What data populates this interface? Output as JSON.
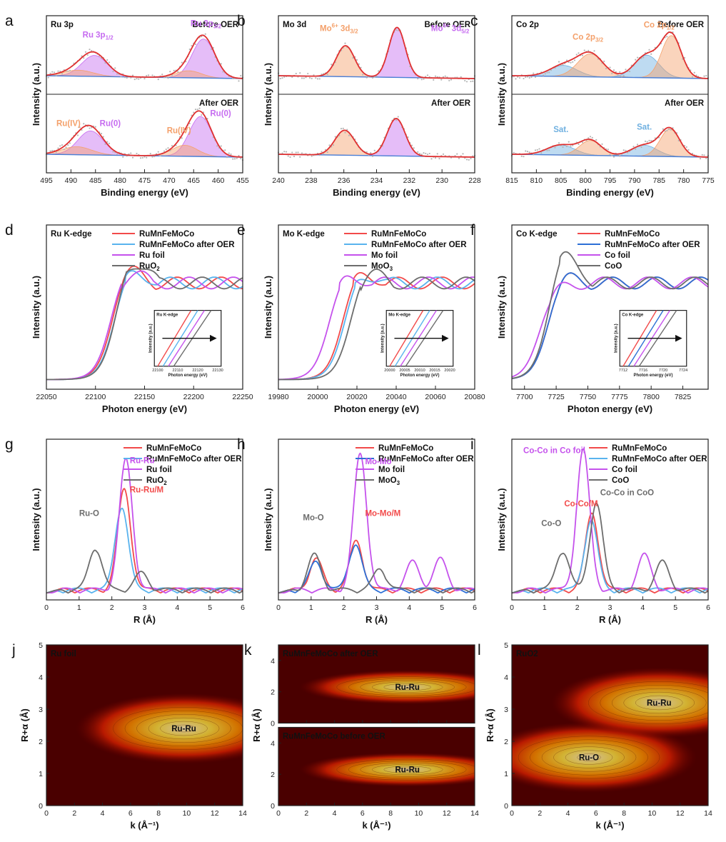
{
  "chart_data": [
    {
      "panel": "a",
      "type": "line",
      "tag": "Ru 3p",
      "xlabel": "Binding energy (eV)",
      "ylabel": "Intensity (a.u.)",
      "xlim": [
        495,
        455
      ],
      "xticks": [
        495,
        490,
        485,
        480,
        475,
        470,
        465,
        460,
        455
      ],
      "subpanels": [
        {
          "label": "Before OER",
          "peaks": [
            {
              "center": 485.2,
              "amp": 0.42,
              "width": 2.6,
              "color": "#c66cf0"
            },
            {
              "center": 463.0,
              "amp": 0.78,
              "width": 2.3,
              "color": "#c66cf0"
            },
            {
              "center": 488.5,
              "amp": 0.12,
              "width": 3.0,
              "color": "#f4a06a"
            },
            {
              "center": 466.0,
              "amp": 0.14,
              "width": 2.6,
              "color": "#f4a06a"
            }
          ],
          "annotations": [
            {
              "text": "Ru 3p",
              "sub": "1/2",
              "x": 484.5,
              "y": 0.82,
              "color": "#c66cf0"
            },
            {
              "text": "Ru 3p",
              "sub": "3/2",
              "x": 462.5,
              "y": 1.05,
              "color": "#c66cf0"
            }
          ]
        },
        {
          "label": "After OER",
          "peaks": [
            {
              "center": 486.0,
              "amp": 0.48,
              "width": 2.6,
              "color": "#c66cf0"
            },
            {
              "center": 463.6,
              "amp": 0.8,
              "width": 2.3,
              "color": "#c66cf0"
            },
            {
              "center": 488.8,
              "amp": 0.16,
              "width": 3.0,
              "color": "#f4a06a"
            },
            {
              "center": 466.8,
              "amp": 0.22,
              "width": 2.6,
              "color": "#f4a06a"
            }
          ],
          "annotations": [
            {
              "text": "Ru(IV)",
              "x": 490.5,
              "y": 0.62,
              "color": "#f4a06a"
            },
            {
              "text": "Ru(0)",
              "x": 482.0,
              "y": 0.62,
              "color": "#c66cf0"
            },
            {
              "text": "Ru(IV)",
              "x": 468.0,
              "y": 0.48,
              "color": "#f4a06a"
            },
            {
              "text": "Ru(0)",
              "x": 459.5,
              "y": 0.82,
              "color": "#c66cf0"
            }
          ]
        }
      ]
    },
    {
      "panel": "b",
      "type": "line",
      "tag": "Mo 3d",
      "xlabel": "Binding energy (eV)",
      "ylabel": "Intensity (a.u.)",
      "xlim": [
        240,
        228
      ],
      "xticks": [
        240,
        238,
        236,
        234,
        232,
        230,
        228
      ],
      "subpanels": [
        {
          "label": "Before OER",
          "peaks": [
            {
              "center": 235.9,
              "amp": 0.62,
              "width": 0.55,
              "color": "#f4a06a"
            },
            {
              "center": 232.75,
              "amp": 1.0,
              "width": 0.5,
              "color": "#c66cf0"
            }
          ],
          "annotations": [
            {
              "text": "Mo",
              "sup": "6+",
              "tail": " 3d",
              "sub": "3/2",
              "x": 236.3,
              "y": 0.95,
              "color": "#f4a06a"
            },
            {
              "text": "Mo",
              "sup": "6+",
              "tail": " 3d",
              "sub": "5/2",
              "x": 229.5,
              "y": 0.95,
              "color": "#c66cf0"
            }
          ]
        },
        {
          "label": "After OER",
          "peaks": [
            {
              "center": 235.95,
              "amp": 0.5,
              "width": 0.6,
              "color": "#f4a06a"
            },
            {
              "center": 232.8,
              "amp": 0.75,
              "width": 0.55,
              "color": "#c66cf0"
            }
          ],
          "annotations": []
        }
      ]
    },
    {
      "panel": "c",
      "type": "line",
      "tag": "Co 2p",
      "xlabel": "Binding energy (eV)",
      "ylabel": "Intensity (a.u.)",
      "xlim": [
        815,
        775
      ],
      "xticks": [
        815,
        810,
        805,
        800,
        795,
        790,
        785,
        780,
        775
      ],
      "subpanels": [
        {
          "label": "Before OER",
          "peaks": [
            {
              "center": 804.5,
              "amp": 0.22,
              "width": 2.8,
              "color": "#6fb0e0"
            },
            {
              "center": 799.0,
              "amp": 0.46,
              "width": 2.6,
              "color": "#f4a06a"
            },
            {
              "center": 787.5,
              "amp": 0.45,
              "width": 2.5,
              "color": "#6fb0e0"
            },
            {
              "center": 782.5,
              "amp": 0.85,
              "width": 2.0,
              "color": "#f4a06a"
            }
          ],
          "annotations": [
            {
              "text": "Co 2p",
              "sub": "3/2",
              "x": 799.5,
              "y": 0.78,
              "color": "#f4a06a"
            },
            {
              "text": "Co 2p",
              "sub": "1/2",
              "x": 785.0,
              "y": 1.02,
              "color": "#f4a06a"
            }
          ]
        },
        {
          "label": "After OER",
          "peaks": [
            {
              "center": 805.0,
              "amp": 0.2,
              "width": 2.8,
              "color": "#6fb0e0"
            },
            {
              "center": 799.0,
              "amp": 0.3,
              "width": 2.2,
              "color": "#f4a06a"
            },
            {
              "center": 788.0,
              "amp": 0.22,
              "width": 2.6,
              "color": "#6fb0e0"
            },
            {
              "center": 782.8,
              "amp": 0.55,
              "width": 2.0,
              "color": "#f4a06a"
            }
          ],
          "annotations": [
            {
              "text": "Sat.",
              "x": 805.0,
              "y": 0.5,
              "color": "#6fb0e0"
            },
            {
              "text": "Sat.",
              "x": 788.0,
              "y": 0.55,
              "color": "#6fb0e0"
            }
          ]
        }
      ]
    },
    {
      "panel": "d",
      "type": "line",
      "tag": "Ru K-edge",
      "xlabel": "Photon energy (eV)",
      "ylabel": "Intensity (a.u.)",
      "xlim": [
        22050,
        22250
      ],
      "ylim": [
        -0.1,
        1.6
      ],
      "xticks": [
        22050,
        22100,
        22150,
        22200,
        22250
      ],
      "series": [
        {
          "name": "RuMnFeMoCo",
          "color": "#f24a4a",
          "edge": 22118,
          "peak": 1.3
        },
        {
          "name": "RuMnFeMoCo after OER",
          "color": "#59b3ee",
          "edge": 22120,
          "peak": 1.28
        },
        {
          "name": "Ru foil",
          "color": "#c552ec",
          "edge": 22116,
          "peak": 1.26
        },
        {
          "name": "RuO",
          "sub": "2",
          "color": "#6d6d6d",
          "edge": 22122,
          "peak": 1.45
        }
      ],
      "inset": {
        "tag": "Ru K-edge",
        "xlabel": "Photon energy (eV)",
        "ylabel": "Intensity (a.u.)",
        "xticks": [
          22100,
          22110,
          22120,
          22130
        ]
      }
    },
    {
      "panel": "e",
      "type": "line",
      "tag": "Mo K-edge",
      "xlabel": "Photon energy (eV)",
      "ylabel": "Intensity (a.u.)",
      "xlim": [
        19980,
        20080
      ],
      "ylim": [
        -0.1,
        1.6
      ],
      "xticks": [
        19980,
        20000,
        20020,
        20040,
        20060,
        20080
      ],
      "series": [
        {
          "name": "RuMnFeMoCo",
          "color": "#f24a4a",
          "edge": 20013,
          "peak": 1.25
        },
        {
          "name": "RuMnFeMoCo after OER",
          "color": "#59b3ee",
          "edge": 20014,
          "peak": 1.23
        },
        {
          "name": "Mo foil",
          "color": "#c552ec",
          "edge": 20006,
          "peak": 1.2
        },
        {
          "name": "MoO",
          "sub": "3",
          "color": "#6d6d6d",
          "edge": 20017,
          "peak": 1.25
        }
      ],
      "inset": {
        "tag": "Mo K-edge",
        "xlabel": "Photon energy (eV)",
        "ylabel": "Intensity (a.u.)",
        "xticks": [
          20000,
          20005,
          20010,
          20015,
          20020
        ]
      }
    },
    {
      "panel": "f",
      "type": "line",
      "tag": "Co K-edge",
      "xlabel": "Photon energy (eV)",
      "ylabel": "Intensity (a.u.)",
      "xlim": [
        7690,
        7845
      ],
      "ylim": [
        -0.1,
        1.6
      ],
      "xticks": [
        7700,
        7725,
        7750,
        7775,
        7800,
        7825
      ],
      "series": [
        {
          "name": "RuMnFeMoCo",
          "color": "#f24a4a",
          "edge": 7719,
          "peak": 1.18
        },
        {
          "name": "RuMnFeMoCo after OER",
          "color": "#2c6fd6",
          "edge": 7719,
          "peak": 1.18
        },
        {
          "name": "Co foil",
          "color": "#c552ec",
          "edge": 7712,
          "peak": 1.0
        },
        {
          "name": "CoO",
          "color": "#6d6d6d",
          "edge": 7720,
          "peak": 1.55
        }
      ],
      "inset": {
        "tag": "Co K-edge",
        "xlabel": "Photon energy (eV)",
        "ylabel": "Intensity (a.u.)",
        "xticks": [
          7712,
          7716,
          7720,
          7724
        ]
      }
    },
    {
      "panel": "g",
      "type": "line",
      "xlabel": "R (Å)",
      "ylabel": "Intensity (a.u.)",
      "xlim": [
        0,
        6
      ],
      "ylim": [
        -0.05,
        1.1
      ],
      "xticks": [
        0,
        1,
        2,
        3,
        4,
        5,
        6
      ],
      "series": [
        {
          "name": "RuMnFeMoCo",
          "color": "#f24a4a",
          "peaks": [
            [
              2.38,
              0.72
            ]
          ]
        },
        {
          "name": "RuMnFeMoCo after OER",
          "color": "#59b3ee",
          "peaks": [
            [
              2.3,
              0.6
            ]
          ]
        },
        {
          "name": "Ru foil",
          "color": "#c552ec",
          "peaks": [
            [
              2.43,
              0.93
            ]
          ]
        },
        {
          "name": "RuO",
          "sub": "2",
          "color": "#6d6d6d",
          "peaks": [
            [
              1.5,
              0.3
            ],
            [
              2.9,
              0.12
            ]
          ]
        }
      ],
      "annotations": [
        {
          "text": "Ru-Ru",
          "x": 2.55,
          "y": 0.93,
          "color": "#c552ec"
        },
        {
          "text": "Ru-Ru/M",
          "x": 2.55,
          "y": 0.72,
          "color": "#f24a4a"
        },
        {
          "text": "Ru-O",
          "x": 1.0,
          "y": 0.55,
          "color": "#6d6d6d"
        }
      ]
    },
    {
      "panel": "h",
      "type": "line",
      "xlabel": "R (Å)",
      "ylabel": "Intensity (a.u.)",
      "xlim": [
        0,
        6
      ],
      "ylim": [
        -0.05,
        1.1
      ],
      "xticks": [
        0,
        1,
        2,
        3,
        4,
        5,
        6
      ],
      "series": [
        {
          "name": "RuMnFeMoCo",
          "color": "#f24a4a",
          "peaks": [
            [
              1.15,
              0.22
            ],
            [
              2.38,
              0.35
            ]
          ]
        },
        {
          "name": "RuMnFeMoCo after OER",
          "color": "#2c6fd6",
          "peaks": [
            [
              1.15,
              0.2
            ],
            [
              2.35,
              0.33
            ]
          ]
        },
        {
          "name": "Mo foil",
          "color": "#c552ec",
          "peaks": [
            [
              2.5,
              0.97
            ],
            [
              4.1,
              0.2
            ],
            [
              4.95,
              0.22
            ]
          ]
        },
        {
          "name": "MoO",
          "sub": "3",
          "color": "#6d6d6d",
          "peaks": [
            [
              1.1,
              0.25
            ],
            [
              3.1,
              0.15
            ]
          ]
        }
      ],
      "annotations": [
        {
          "text": "Mo-Mo",
          "x": 2.65,
          "y": 0.92,
          "color": "#c552ec"
        },
        {
          "text": "Mo-Mo/M",
          "x": 2.65,
          "y": 0.55,
          "color": "#f24a4a"
        },
        {
          "text": "Mo-O",
          "x": 0.75,
          "y": 0.52,
          "color": "#6d6d6d"
        }
      ]
    },
    {
      "panel": "i",
      "type": "line",
      "xlabel": "R (Å)",
      "ylabel": "Intensity (a.u.)",
      "xlim": [
        0,
        6
      ],
      "ylim": [
        -0.05,
        1.1
      ],
      "xticks": [
        0,
        1,
        2,
        3,
        4,
        5,
        6
      ],
      "series": [
        {
          "name": "RuMnFeMoCo",
          "color": "#f24a4a",
          "peaks": [
            [
              2.45,
              0.55
            ]
          ]
        },
        {
          "name": "RuMnFeMoCo after OER",
          "color": "#59b3ee",
          "peaks": [
            [
              2.42,
              0.5
            ]
          ]
        },
        {
          "name": "Co foil",
          "color": "#c552ec",
          "peaks": [
            [
              2.18,
              1.0
            ],
            [
              4.05,
              0.25
            ]
          ]
        },
        {
          "name": "CoO",
          "color": "#6d6d6d",
          "peaks": [
            [
              1.55,
              0.28
            ],
            [
              2.58,
              0.62
            ],
            [
              4.6,
              0.2
            ]
          ]
        }
      ],
      "annotations": [
        {
          "text": "Co-Co in Co foil",
          "x": 0.35,
          "y": 1.0,
          "color": "#c552ec"
        },
        {
          "text": "Co-Co/M",
          "x": 1.6,
          "y": 0.62,
          "color": "#f24a4a"
        },
        {
          "text": "Co-Co in CoO",
          "x": 2.7,
          "y": 0.7,
          "color": "#6d6d6d"
        },
        {
          "text": "Co-O",
          "x": 0.9,
          "y": 0.48,
          "color": "#6d6d6d"
        }
      ]
    },
    {
      "panel": "j",
      "type": "heatmap",
      "tag": "Ru foil",
      "xlabel": "k (Å⁻¹)",
      "ylabel": "R+α (Å)",
      "xlim": [
        0,
        14
      ],
      "ylim": [
        0,
        5
      ],
      "xticks": [
        0,
        2,
        4,
        6,
        8,
        10,
        12,
        14
      ],
      "yticks": [
        0,
        1,
        2,
        3,
        4,
        5
      ],
      "maxima": [
        {
          "label": "Ru-Ru",
          "k": 9.8,
          "r": 2.4
        }
      ]
    },
    {
      "panel": "k",
      "type": "heatmap",
      "xlabel": "k (Å⁻¹)",
      "ylabel": "R+α (Å)",
      "xlim": [
        0,
        14
      ],
      "xticks": [
        0,
        2,
        4,
        6,
        8,
        10,
        12,
        14
      ],
      "subpanels": [
        {
          "tag": "RuMnFeMoCo after OER",
          "ylim": [
            0,
            5
          ],
          "yticks": [
            0,
            2,
            4
          ],
          "maxima": [
            {
              "label": "Ru-Ru",
              "k": 9.2,
              "r": 2.3
            }
          ]
        },
        {
          "tag": "RuMnFeMoCo before OER",
          "ylim": [
            0,
            5
          ],
          "yticks": [
            0,
            2,
            4
          ],
          "maxima": [
            {
              "label": "Ru-Ru",
              "k": 9.2,
              "r": 2.3
            }
          ]
        }
      ]
    },
    {
      "panel": "l",
      "type": "heatmap",
      "tag": "RuO2",
      "xlabel": "k (Å⁻¹)",
      "ylabel": "R+α (Å)",
      "xlim": [
        0,
        14
      ],
      "ylim": [
        0,
        5
      ],
      "xticks": [
        0,
        2,
        4,
        6,
        8,
        10,
        12,
        14
      ],
      "yticks": [
        0,
        1,
        2,
        3,
        4,
        5
      ],
      "maxima": [
        {
          "label": "Ru-O",
          "k": 5.5,
          "r": 1.5
        },
        {
          "label": "Ru-Ru",
          "k": 10.5,
          "r": 3.2
        }
      ]
    }
  ]
}
